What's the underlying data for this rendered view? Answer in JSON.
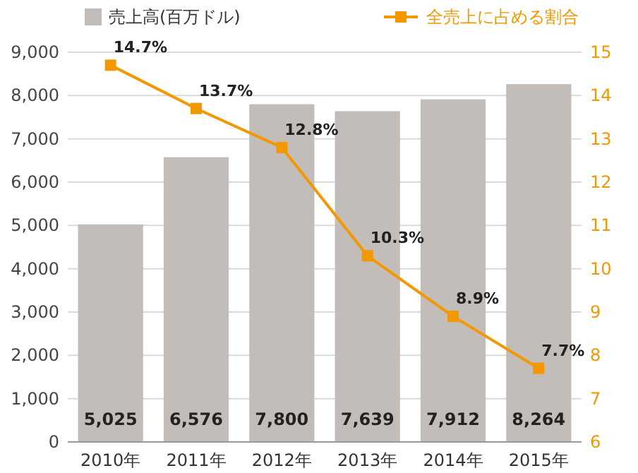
{
  "chart_data": {
    "type": "bar",
    "categories": [
      "2010年",
      "2011年",
      "2012年",
      "2013年",
      "2014年",
      "2015年"
    ],
    "series": [
      {
        "name": "売上高(百万ドル)",
        "color": "#c3bdb9",
        "values": [
          5025,
          6576,
          7800,
          7639,
          7912,
          8264
        ],
        "value_labels": [
          "5,025",
          "6,576",
          "7,800",
          "7,639",
          "7,912",
          "8,264"
        ]
      },
      {
        "name": "全売上に占める割合",
        "type": "line",
        "axis": "y2",
        "color": "#f39800",
        "values": [
          14.7,
          13.7,
          12.8,
          10.3,
          8.9,
          7.7
        ],
        "value_labels": [
          "14.7%",
          "13.7%",
          "12.8%",
          "10.3%",
          "8.9%",
          "7.7%"
        ]
      }
    ],
    "ylim": [
      0,
      9000
    ],
    "yticks": [
      {
        "value": 0,
        "label": "0"
      },
      {
        "value": 1000,
        "label": "1,000"
      },
      {
        "value": 2000,
        "label": "2,000"
      },
      {
        "value": 3000,
        "label": "3,000"
      },
      {
        "value": 4000,
        "label": "4,000"
      },
      {
        "value": 5000,
        "label": "5,000"
      },
      {
        "value": 6000,
        "label": "6,000"
      },
      {
        "value": 7000,
        "label": "7,000"
      },
      {
        "value": 8000,
        "label": "8,000"
      },
      {
        "value": 9000,
        "label": "9,000"
      }
    ],
    "y2lim": [
      6,
      15
    ],
    "y2ticks": [
      6,
      7,
      8,
      9,
      10,
      11,
      12,
      13,
      14,
      15
    ],
    "grid": "y",
    "legend": "top",
    "marker": "square"
  }
}
